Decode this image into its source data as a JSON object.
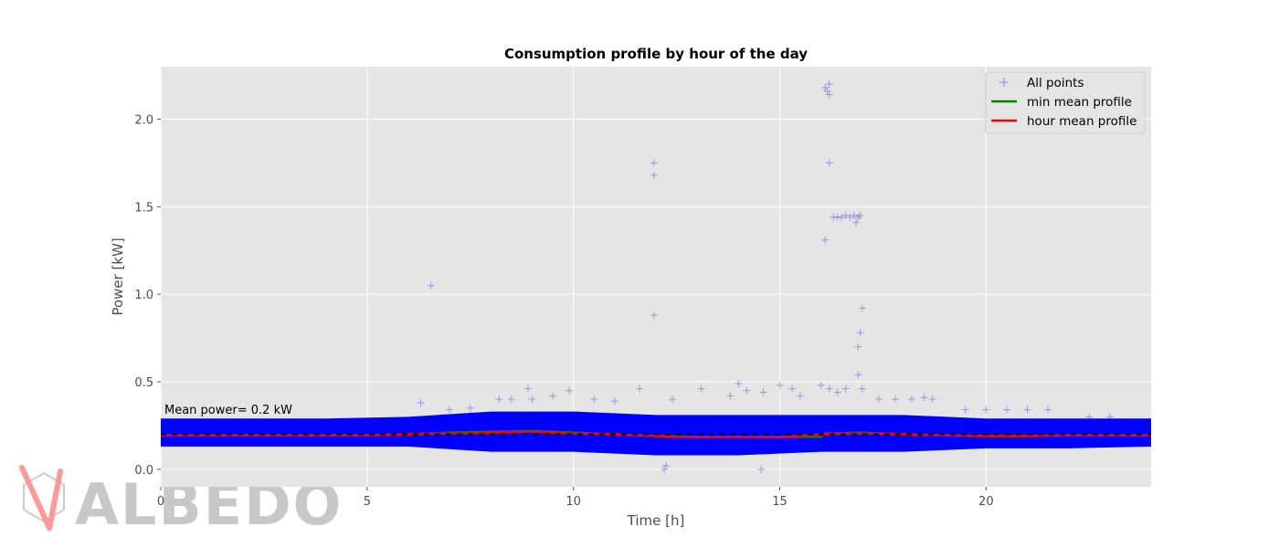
{
  "colors": {
    "plot_bg": "#e5e5e5",
    "grid": "#ffffff",
    "points": "#0000ff",
    "min_mean": "#008000",
    "hour_mean": "#ff0000",
    "mean_line": "#000000",
    "watermark_gray": "#c8c8c8",
    "watermark_red": "#ff9999"
  },
  "watermark": {
    "text": "ALBEDO"
  },
  "annotation": {
    "text": "Mean power= 0.2 kW"
  },
  "chart_data": {
    "type": "scatter",
    "title": "Consumption profile by hour of the day",
    "xlabel": "Time [h]",
    "ylabel": "Power [kW]",
    "xlim": [
      0,
      24
    ],
    "ylim": [
      -0.1,
      2.3
    ],
    "xticks": [
      0,
      5,
      10,
      15,
      20
    ],
    "yticks": [
      0.0,
      0.5,
      1.0,
      1.5,
      2.0
    ],
    "xtick_labels": [
      "0",
      "5",
      "10",
      "15",
      "20"
    ],
    "ytick_labels": [
      "0.0",
      "0.5",
      "1.0",
      "1.5",
      "2.0"
    ],
    "grid": true,
    "legend_position": "top-right",
    "mean_power": 0.2,
    "series": [
      {
        "name": "All points",
        "kind": "scatter",
        "marker": "+",
        "band": [
          [
            0,
            0.13,
            0.29
          ],
          [
            2,
            0.13,
            0.29
          ],
          [
            4,
            0.13,
            0.29
          ],
          [
            6,
            0.13,
            0.3
          ],
          [
            8,
            0.1,
            0.33
          ],
          [
            10,
            0.1,
            0.33
          ],
          [
            12,
            0.08,
            0.31
          ],
          [
            14,
            0.08,
            0.31
          ],
          [
            16,
            0.1,
            0.31
          ],
          [
            18,
            0.1,
            0.31
          ],
          [
            20,
            0.12,
            0.29
          ],
          [
            22,
            0.12,
            0.29
          ],
          [
            24,
            0.13,
            0.29
          ]
        ],
        "outliers": [
          [
            6.55,
            1.05
          ],
          [
            11.95,
            1.75
          ],
          [
            11.95,
            1.68
          ],
          [
            11.95,
            0.88
          ],
          [
            16.1,
            2.18
          ],
          [
            16.15,
            2.16
          ],
          [
            16.2,
            2.14
          ],
          [
            16.2,
            2.2
          ],
          [
            16.2,
            1.75
          ],
          [
            16.1,
            1.31
          ],
          [
            16.3,
            1.44
          ],
          [
            16.4,
            1.44
          ],
          [
            16.5,
            1.44
          ],
          [
            16.6,
            1.45
          ],
          [
            16.7,
            1.44
          ],
          [
            16.8,
            1.45
          ],
          [
            16.9,
            1.44
          ],
          [
            16.95,
            1.45
          ],
          [
            16.85,
            1.41
          ],
          [
            17.0,
            0.92
          ],
          [
            16.95,
            0.78
          ],
          [
            16.9,
            0.7
          ],
          [
            16.9,
            0.54
          ],
          [
            12.25,
            0.02
          ],
          [
            12.2,
            0.0
          ],
          [
            14.55,
            0.0
          ],
          [
            6.3,
            0.38
          ],
          [
            8.9,
            0.46
          ],
          [
            9.9,
            0.45
          ],
          [
            11.6,
            0.46
          ],
          [
            13.1,
            0.46
          ],
          [
            14.0,
            0.49
          ],
          [
            14.2,
            0.45
          ],
          [
            15.0,
            0.48
          ],
          [
            15.3,
            0.46
          ],
          [
            16.0,
            0.48
          ],
          [
            16.2,
            0.46
          ],
          [
            16.6,
            0.46
          ],
          [
            17.0,
            0.46
          ],
          [
            12.4,
            0.4
          ],
          [
            13.8,
            0.42
          ],
          [
            14.6,
            0.44
          ],
          [
            15.5,
            0.42
          ],
          [
            16.4,
            0.44
          ],
          [
            17.4,
            0.4
          ],
          [
            17.8,
            0.4
          ],
          [
            18.2,
            0.4
          ],
          [
            18.5,
            0.41
          ],
          [
            18.7,
            0.4
          ],
          [
            8.2,
            0.4
          ],
          [
            8.5,
            0.4
          ],
          [
            9.0,
            0.4
          ],
          [
            9.5,
            0.42
          ],
          [
            10.5,
            0.4
          ],
          [
            11.0,
            0.39
          ],
          [
            7.5,
            0.35
          ],
          [
            7.0,
            0.34
          ],
          [
            19.5,
            0.34
          ],
          [
            20.0,
            0.34
          ],
          [
            20.5,
            0.34
          ],
          [
            21.0,
            0.34
          ],
          [
            21.5,
            0.34
          ],
          [
            22.5,
            0.3
          ],
          [
            23.0,
            0.3
          ]
        ]
      },
      {
        "name": "min mean profile",
        "kind": "line",
        "x": [
          0,
          1,
          2,
          3,
          4,
          5,
          6,
          7,
          8,
          9,
          10,
          11,
          12,
          13,
          14,
          15,
          16,
          16.1,
          17,
          18,
          19,
          20,
          21,
          22,
          23,
          24
        ],
        "y": [
          0.195,
          0.195,
          0.195,
          0.195,
          0.195,
          0.195,
          0.2,
          0.21,
          0.215,
          0.22,
          0.21,
          0.2,
          0.19,
          0.185,
          0.185,
          0.185,
          0.185,
          0.205,
          0.21,
          0.2,
          0.195,
          0.19,
          0.19,
          0.195,
          0.195,
          0.195
        ]
      },
      {
        "name": "hour mean profile",
        "kind": "line",
        "x": [
          0,
          1,
          2,
          3,
          4,
          5,
          6,
          7,
          8,
          9,
          10,
          11,
          12,
          13,
          14,
          15,
          16,
          17,
          18,
          19,
          20,
          21,
          22,
          23,
          24
        ],
        "y": [
          0.195,
          0.195,
          0.195,
          0.195,
          0.195,
          0.195,
          0.2,
          0.205,
          0.21,
          0.215,
          0.205,
          0.2,
          0.19,
          0.183,
          0.185,
          0.183,
          0.2,
          0.205,
          0.2,
          0.195,
          0.19,
          0.19,
          0.195,
          0.195,
          0.195
        ]
      }
    ]
  }
}
